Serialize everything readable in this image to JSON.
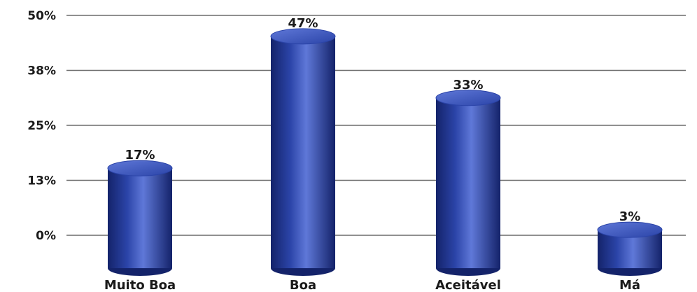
{
  "chart_data": {
    "type": "bar",
    "style": "cylinder",
    "categories": [
      "Muito Boa",
      "Boa",
      "Aceitável",
      "Má"
    ],
    "values": [
      17,
      47,
      33,
      3
    ],
    "data_labels": [
      "17%",
      "47%",
      "33%",
      "3%"
    ],
    "y_ticks": [
      0,
      12.5,
      25,
      37.5,
      50
    ],
    "y_tick_labels": [
      "0%",
      "13%",
      "25%",
      "38%",
      "50%"
    ],
    "ylim": [
      0,
      50
    ],
    "grid": true,
    "legend": "none",
    "bar_color": "#2b44a8",
    "bar_highlight": "#5f78d8",
    "bar_shadow": "#14236a"
  }
}
